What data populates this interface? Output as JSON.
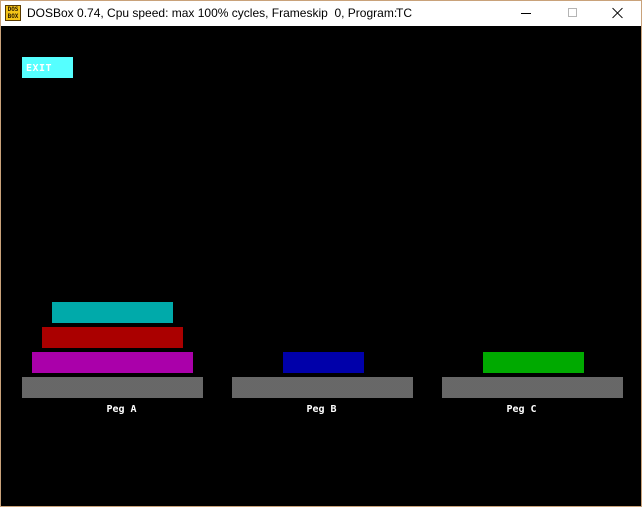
{
  "window": {
    "title": "DOSBox 0.74, Cpu speed: max 100% cycles, Frameskip  0, Program:",
    "program": "TC",
    "icon_label": "DOS BOX",
    "icon": "dosbox-icon"
  },
  "controls": {
    "minimize": "minimize-icon",
    "maximize": "maximize-icon",
    "close": "close-icon"
  },
  "game": {
    "exit_label": "EXIT",
    "pegs": [
      {
        "label": "Peg A",
        "disks": [
          "purple",
          "red",
          "cyan"
        ]
      },
      {
        "label": "Peg B",
        "disks": [
          "blue"
        ]
      },
      {
        "label": "Peg C",
        "disks": [
          "green"
        ]
      }
    ],
    "colors": {
      "background": "#000000",
      "exit_button": "#55ffff",
      "cyan": "#00aaaa",
      "red": "#aa0000",
      "purple": "#aa00aa",
      "blue": "#0000aa",
      "green": "#00aa00"
    }
  }
}
